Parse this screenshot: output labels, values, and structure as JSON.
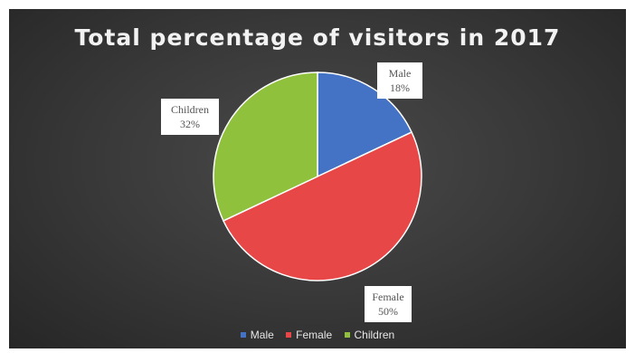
{
  "chart_data": {
    "type": "pie",
    "title": "Total percentage of visitors in 2017",
    "categories": [
      "Male",
      "Female",
      "Children"
    ],
    "values": [
      18,
      50,
      32
    ],
    "data_labels": [
      {
        "category": "Male",
        "value": "18%"
      },
      {
        "category": "Female",
        "value": "50%"
      },
      {
        "category": "Children",
        "value": "32%"
      }
    ],
    "colors": [
      "#4472c4",
      "#e74747",
      "#8fc13c"
    ],
    "background": "#3a3a3a",
    "legend_position": "bottom",
    "legend": [
      "Male",
      "Female",
      "Children"
    ]
  }
}
